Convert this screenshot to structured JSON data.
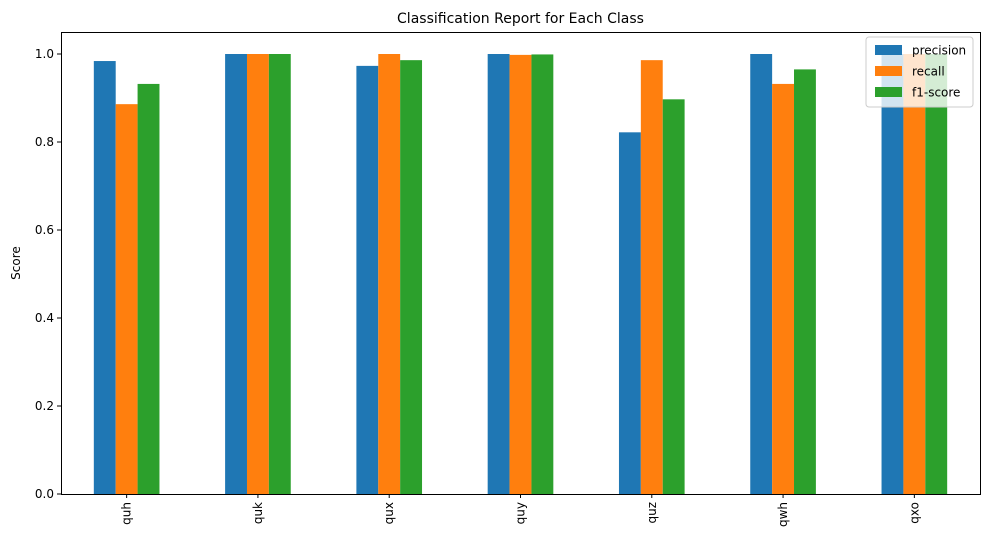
{
  "chart_data": {
    "type": "bar",
    "title": "Classification Report for Each Class",
    "xlabel": "",
    "ylabel": "Score",
    "ylim": [
      0,
      1.05
    ],
    "yticks": [
      "0.0",
      "0.2",
      "0.4",
      "0.6",
      "0.8",
      "1.0"
    ],
    "categories": [
      "quh",
      "quk",
      "qux",
      "quy",
      "quz",
      "qwh",
      "qxo"
    ],
    "series": [
      {
        "name": "precision",
        "color": "#1f77b4",
        "values": [
          0.984,
          1.0,
          0.973,
          1.0,
          0.822,
          1.0,
          1.0
        ]
      },
      {
        "name": "recall",
        "color": "#ff7f0e",
        "values": [
          0.886,
          1.0,
          1.0,
          0.998,
          0.986,
          0.932,
          1.0
        ]
      },
      {
        "name": "f1-score",
        "color": "#2ca02c",
        "values": [
          0.932,
          1.0,
          0.986,
          0.999,
          0.897,
          0.965,
          1.0
        ]
      }
    ],
    "grid": false,
    "legend_position": "top-right"
  }
}
